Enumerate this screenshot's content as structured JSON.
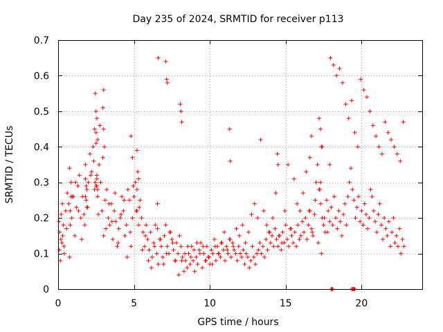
{
  "chart_data": {
    "type": "scatter",
    "title": "Day 235 of 2024, SRMTID for receiver p113",
    "xlabel": "GPS time / hours",
    "ylabel": "SRMTID / TECUs",
    "xlim": [
      0,
      24
    ],
    "ylim": [
      0,
      0.7
    ],
    "xticks": [
      0,
      5,
      10,
      15,
      20
    ],
    "yticks": [
      0,
      0.1,
      0.2,
      0.3,
      0.4,
      0.5,
      0.6,
      0.7
    ],
    "xtick_labels": [
      "0",
      "5",
      "10",
      "15",
      "20"
    ],
    "ytick_labels": [
      "0",
      "0.1",
      "0.2",
      "0.3",
      "0.4",
      "0.5",
      "0.6",
      "0.7"
    ],
    "grid": true,
    "marker": "+",
    "color": "#ff0000",
    "points_x": [
      0.05,
      0.1,
      0.15,
      0.2,
      0.25,
      0.3,
      0.35,
      0.4,
      0.5,
      0.6,
      0.7,
      0.8,
      0.85,
      0.9,
      1.0,
      1.1,
      1.2,
      1.3,
      1.4,
      1.5,
      1.6,
      1.7,
      1.8,
      1.9,
      2.0,
      2.1,
      2.2,
      2.3,
      2.4,
      2.45,
      2.5,
      2.55,
      2.6,
      2.7,
      2.8,
      2.9,
      3.0,
      3.1,
      3.2,
      3.3,
      3.4,
      3.5,
      3.6,
      3.7,
      3.8,
      3.9,
      4.0,
      4.1,
      4.2,
      4.3,
      4.4,
      4.5,
      4.6,
      4.7,
      4.8,
      4.9,
      5.0,
      5.1,
      5.2,
      5.3,
      5.4,
      5.5,
      5.6,
      5.7,
      5.8,
      5.9,
      6.0,
      6.1,
      6.2,
      6.3,
      6.4,
      6.5,
      6.6,
      6.7,
      6.8,
      6.9,
      7.0,
      7.1,
      7.2,
      7.3,
      7.4,
      7.5,
      7.6,
      7.7,
      7.8,
      7.9,
      8.0,
      8.1,
      8.2,
      8.3,
      8.4,
      8.5,
      8.6,
      8.7,
      8.8,
      8.9,
      9.0,
      9.1,
      9.2,
      9.3,
      9.4,
      9.5,
      9.6,
      9.7,
      9.8,
      9.9,
      10.0,
      10.1,
      10.2,
      10.3,
      10.4,
      10.5,
      10.6,
      10.7,
      10.8,
      10.9,
      11.0,
      11.1,
      11.2,
      11.3,
      11.4,
      11.5,
      11.6,
      11.7,
      11.8,
      11.9,
      12.0,
      12.1,
      12.2,
      12.3,
      12.4,
      12.5,
      12.6,
      12.7,
      12.8,
      12.9,
      13.0,
      13.1,
      13.2,
      13.3,
      13.4,
      13.5,
      13.6,
      13.7,
      13.8,
      13.9,
      14.0,
      14.1,
      14.2,
      14.3,
      14.4,
      14.5,
      14.6,
      14.7,
      14.8,
      14.9,
      15.0,
      15.1,
      15.2,
      15.3,
      15.4,
      15.5,
      15.6,
      15.7,
      15.8,
      15.9,
      16.0,
      16.1,
      16.2,
      16.3,
      16.4,
      16.5,
      16.6,
      16.7,
      16.8,
      16.9,
      17.0,
      17.1,
      17.2,
      17.3,
      17.4,
      17.5,
      17.6,
      17.7,
      17.8,
      17.9,
      18.0,
      18.1,
      18.2,
      18.3,
      18.4,
      18.5,
      18.6,
      18.7,
      18.8,
      18.9,
      19.0,
      19.1,
      19.2,
      19.3,
      19.4,
      19.5,
      19.6,
      19.7,
      19.8,
      19.9,
      20.0,
      20.1,
      20.2,
      20.3,
      20.4,
      20.5,
      20.6,
      20.7,
      20.8,
      20.9,
      21.0,
      21.1,
      21.2,
      21.3,
      21.4,
      21.5,
      21.6,
      21.7,
      21.8,
      21.9,
      22.0,
      22.1,
      22.2,
      22.3,
      22.4,
      22.5,
      22.6,
      22.7,
      22.8,
      0.08,
      0.18,
      0.28,
      0.38,
      0.55,
      0.75,
      0.95,
      1.15,
      1.35,
      1.55,
      1.75,
      1.95,
      2.15,
      2.35,
      2.55,
      2.75,
      2.95,
      3.15,
      3.35,
      3.55,
      3.75,
      3.95,
      4.15,
      4.35,
      4.55,
      4.75,
      4.95,
      5.15,
      5.35,
      5.55,
      5.75,
      5.95,
      6.15,
      6.35,
      6.55,
      6.75,
      6.95,
      7.15,
      7.35,
      7.55,
      7.75,
      7.95,
      8.15,
      8.35,
      8.55,
      8.75,
      8.95,
      9.15,
      9.35,
      9.55,
      9.75,
      9.95,
      10.15,
      10.35,
      10.55,
      10.75,
      10.95,
      11.15,
      11.35,
      11.55,
      11.75,
      11.95,
      12.15,
      12.35,
      12.55,
      12.75,
      12.95,
      13.15,
      13.35,
      13.55,
      13.75,
      13.95,
      14.15,
      14.35,
      14.55,
      14.75,
      14.95,
      15.15,
      15.35,
      15.55,
      15.75,
      15.95,
      16.15,
      16.35,
      16.55,
      16.75,
      16.95,
      17.15,
      17.35,
      17.55,
      17.75,
      17.95,
      18.15,
      18.35,
      18.55,
      18.75,
      18.95,
      19.15,
      19.35,
      19.55,
      19.75,
      19.95,
      20.15,
      20.35,
      20.55,
      20.75,
      20.95,
      21.15,
      21.35,
      21.55,
      21.75,
      21.95,
      22.15,
      22.35,
      22.55,
      22.75,
      2.5,
      2.5,
      2.5,
      2.55,
      2.55,
      2.6,
      2.6,
      2.65,
      2.45,
      2.4,
      1.8,
      1.8,
      1.85,
      1.85,
      1.9,
      0.8,
      0.85,
      0.75,
      2.95,
      3.0,
      3.05,
      3.0,
      4.8,
      4.9,
      5.2,
      5.25,
      5.3,
      5.2,
      6.55,
      6.6,
      7.1,
      7.15,
      7.2,
      8.05,
      8.1,
      8.15,
      11.3,
      11.35,
      14.45,
      14.5,
      16.6,
      16.7,
      17.2,
      17.3,
      17.35,
      17.3,
      17.25,
      17.4,
      17.9,
      18.0,
      18.05,
      18.1,
      19.35,
      19.4,
      19.45,
      19.5,
      19.55,
      19.4,
      19.45,
      19.35,
      20.3,
      20.4,
      20.5,
      20.6,
      21.0,
      21.05,
      21.1,
      21.15,
      22.0,
      22.05,
      22.3,
      22.4,
      5.1,
      5.15,
      6.05,
      6.1,
      7.05,
      7.15,
      8.0,
      8.05
    ],
    "points_y": [
      0.19,
      0.16,
      0.08,
      0.21,
      0.13,
      0.15,
      0.18,
      0.1,
      0.22,
      0.27,
      0.24,
      0.18,
      0.3,
      0.2,
      0.26,
      0.15,
      0.23,
      0.29,
      0.32,
      0.2,
      0.26,
      0.21,
      0.35,
      0.28,
      0.3,
      0.38,
      0.33,
      0.4,
      0.45,
      0.55,
      0.5,
      0.48,
      0.42,
      0.35,
      0.3,
      0.22,
      0.15,
      0.25,
      0.28,
      0.2,
      0.18,
      0.24,
      0.14,
      0.22,
      0.19,
      0.12,
      0.17,
      0.2,
      0.26,
      0.22,
      0.15,
      0.18,
      0.28,
      0.25,
      0.12,
      0.2,
      0.26,
      0.3,
      0.22,
      0.18,
      0.25,
      0.2,
      0.16,
      0.12,
      0.18,
      0.14,
      0.11,
      0.16,
      0.09,
      0.13,
      0.18,
      0.1,
      0.07,
      0.14,
      0.12,
      0.09,
      0.15,
      0.18,
      0.12,
      0.1,
      0.16,
      0.14,
      0.11,
      0.08,
      0.13,
      0.1,
      0.15,
      0.12,
      0.09,
      0.05,
      0.08,
      0.06,
      0.1,
      0.07,
      0.12,
      0.08,
      0.05,
      0.09,
      0.07,
      0.11,
      0.13,
      0.06,
      0.1,
      0.08,
      0.12,
      0.09,
      0.07,
      0.11,
      0.1,
      0.14,
      0.08,
      0.12,
      0.1,
      0.09,
      0.13,
      0.11,
      0.08,
      0.12,
      0.1,
      0.14,
      0.09,
      0.13,
      0.11,
      0.1,
      0.08,
      0.12,
      0.1,
      0.09,
      0.11,
      0.07,
      0.1,
      0.09,
      0.06,
      0.08,
      0.12,
      0.09,
      0.07,
      0.1,
      0.11,
      0.13,
      0.1,
      0.12,
      0.09,
      0.14,
      0.11,
      0.16,
      0.13,
      0.15,
      0.12,
      0.17,
      0.14,
      0.12,
      0.15,
      0.11,
      0.16,
      0.13,
      0.18,
      0.14,
      0.12,
      0.17,
      0.15,
      0.13,
      0.16,
      0.12,
      0.18,
      0.14,
      0.15,
      0.19,
      0.16,
      0.2,
      0.14,
      0.18,
      0.22,
      0.17,
      0.15,
      0.21,
      0.3,
      0.35,
      0.28,
      0.24,
      0.2,
      0.18,
      0.16,
      0.25,
      0.22,
      0.19,
      0.23,
      0.18,
      0.26,
      0.2,
      0.17,
      0.22,
      0.19,
      0.15,
      0.21,
      0.24,
      0.18,
      0.26,
      0.3,
      0.34,
      0.28,
      0.25,
      0.2,
      0.23,
      0.26,
      0.19,
      0.22,
      0.18,
      0.24,
      0.21,
      0.17,
      0.2,
      0.28,
      0.26,
      0.22,
      0.19,
      0.16,
      0.21,
      0.24,
      0.18,
      0.14,
      0.2,
      0.17,
      0.15,
      0.19,
      0.12,
      0.16,
      0.2,
      0.13,
      0.15,
      0.12,
      0.17,
      0.1,
      0.14,
      0.12,
      0.11,
      0.14,
      0.24,
      0.12,
      0.17,
      0.09,
      0.26,
      0.3,
      0.22,
      0.14,
      0.18,
      0.23,
      0.32,
      0.36,
      0.29,
      0.46,
      0.51,
      0.17,
      0.24,
      0.19,
      0.27,
      0.13,
      0.21,
      0.25,
      0.09,
      0.16,
      0.29,
      0.22,
      0.23,
      0.11,
      0.15,
      0.08,
      0.06,
      0.12,
      0.17,
      0.14,
      0.07,
      0.1,
      0.16,
      0.13,
      0.08,
      0.04,
      0.08,
      0.1,
      0.12,
      0.09,
      0.11,
      0.13,
      0.1,
      0.12,
      0.08,
      0.09,
      0.07,
      0.12,
      0.1,
      0.13,
      0.16,
      0.11,
      0.14,
      0.12,
      0.17,
      0.15,
      0.18,
      0.13,
      0.16,
      0.21,
      0.24,
      0.2,
      0.42,
      0.22,
      0.18,
      0.16,
      0.2,
      0.27,
      0.15,
      0.13,
      0.22,
      0.35,
      0.17,
      0.31,
      0.24,
      0.22,
      0.27,
      0.33,
      0.22,
      0.16,
      0.25,
      0.13,
      0.1,
      0.2,
      0.16,
      0.65,
      0.63,
      0.6,
      0.62,
      0.58,
      0.52,
      0.48,
      0.53,
      0.44,
      0.4,
      0.59,
      0.56,
      0.54,
      0.5,
      0.46,
      0.43,
      0.4,
      0.38,
      0.47,
      0.44,
      0.42,
      0.4,
      0.38,
      0.36,
      0.47,
      0.44,
      0.41,
      0.29,
      0.32,
      0.31,
      0.28,
      0.26,
      0.21,
      0.3,
      0.28,
      0.26,
      0.31,
      0.29,
      0.25,
      0.23,
      0.22,
      0.26,
      0.34,
      0.37,
      0.45,
      0.4,
      0.56,
      0.43,
      0.37,
      0.39,
      0.33,
      0.31,
      0.28,
      0.24,
      0.65,
      0.64,
      0.59,
      0.58,
      0.52,
      0.5,
      0.47,
      0.45,
      0.36,
      0.38,
      0.35,
      0.37,
      0.43,
      0.48,
      0.45,
      0.4,
      0.3,
      0.28,
      0.4,
      0.35,
      0.0,
      0.0,
      0.0,
      0.0,
      0.0,
      0.0,
      0.0,
      0.0
    ]
  }
}
